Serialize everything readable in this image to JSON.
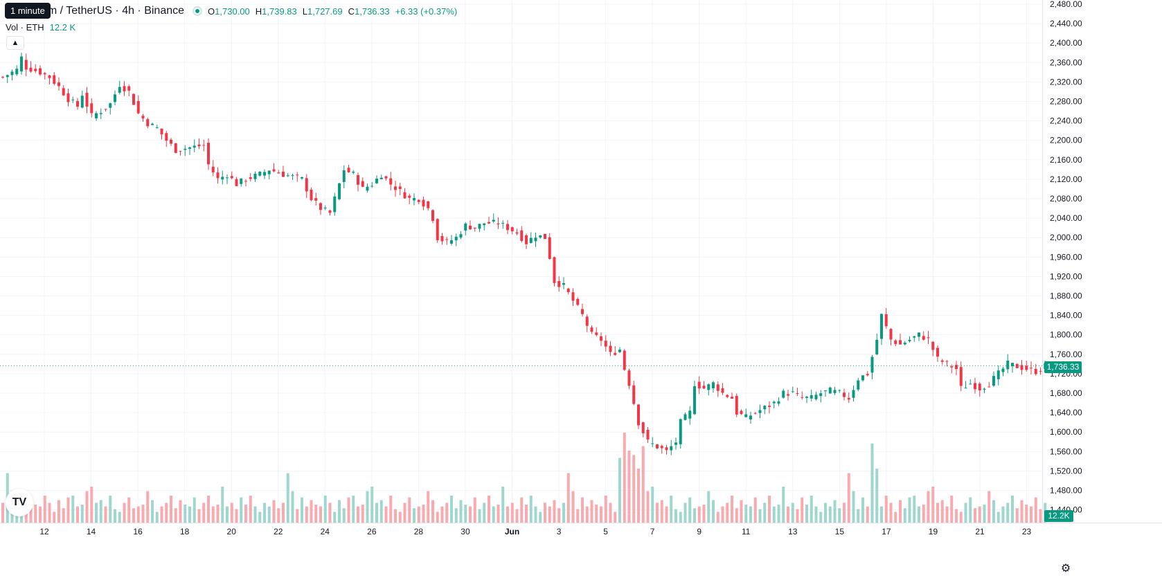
{
  "header": {
    "tooltip": "1 minute",
    "symbol_title": "um / TetherUS · 4h · Binance",
    "ohlc": {
      "o_label": "O",
      "o_value": "1,730.00",
      "h_label": "H",
      "h_value": "1,739.83",
      "l_label": "L",
      "l_value": "1,727.69",
      "c_label": "C",
      "c_value": "1,736.33",
      "change": "+6.33 (+0.37%)"
    }
  },
  "volume_legend": {
    "label": "Vol · ETH",
    "value": "12.2 K"
  },
  "last_price_tag": "1,736.33",
  "volume_tag": "12.2K",
  "colors": {
    "up": "#089981",
    "down": "#f23645",
    "vol_up": "#9fd7cf",
    "vol_down": "#f8aaae",
    "grid": "#f0f3fa"
  },
  "icons": {
    "collapse": "chevron-up-icon",
    "logo": "tradingview-logo-icon",
    "settings": "gear-icon"
  },
  "chart_data": {
    "type": "candlestick",
    "interval": "4h",
    "last_price": 1736.33,
    "y_ticks": [
      "2,480.00",
      "2,440.00",
      "2,400.00",
      "2,360.00",
      "2,320.00",
      "2,280.00",
      "2,240.00",
      "2,200.00",
      "2,160.00",
      "2,120.00",
      "2,080.00",
      "2,040.00",
      "2,000.00",
      "1,960.00",
      "1,920.00",
      "1,880.00",
      "1,840.00",
      "1,800.00",
      "1,760.00",
      "1,720.00",
      "1,680.00",
      "1,640.00",
      "1,600.00",
      "1,560.00",
      "1,520.00",
      "1,480.00",
      "1,440.00"
    ],
    "x_ticks": [
      "12",
      "14",
      "16",
      "18",
      "20",
      "22",
      "24",
      "26",
      "28",
      "30",
      "Jun",
      "3",
      "5",
      "7",
      "9",
      "11",
      "13",
      "15",
      "17",
      "19",
      "21",
      "23"
    ],
    "path_points": [
      [
        0,
        2330
      ],
      [
        3,
        2345
      ],
      [
        4,
        2370
      ],
      [
        5,
        2350
      ],
      [
        8,
        2340
      ],
      [
        10,
        2330
      ],
      [
        12,
        2310
      ],
      [
        14,
        2285
      ],
      [
        16,
        2270
      ],
      [
        17,
        2295
      ],
      [
        19,
        2250
      ],
      [
        21,
        2260
      ],
      [
        23,
        2275
      ],
      [
        25,
        2315
      ],
      [
        27,
        2300
      ],
      [
        29,
        2255
      ],
      [
        31,
        2235
      ],
      [
        33,
        2225
      ],
      [
        35,
        2200
      ],
      [
        37,
        2180
      ],
      [
        40,
        2185
      ],
      [
        43,
        2190
      ],
      [
        44,
        2150
      ],
      [
        46,
        2120
      ],
      [
        48,
        2130
      ],
      [
        50,
        2110
      ],
      [
        52,
        2120
      ],
      [
        55,
        2130
      ],
      [
        57,
        2140
      ],
      [
        60,
        2130
      ],
      [
        62,
        2125
      ],
      [
        64,
        2120
      ],
      [
        66,
        2080
      ],
      [
        68,
        2060
      ],
      [
        70,
        2050
      ],
      [
        71,
        2080
      ],
      [
        73,
        2140
      ],
      [
        75,
        2130
      ],
      [
        77,
        2100
      ],
      [
        79,
        2110
      ],
      [
        81,
        2130
      ],
      [
        83,
        2110
      ],
      [
        85,
        2095
      ],
      [
        87,
        2080
      ],
      [
        89,
        2080
      ],
      [
        91,
        2060
      ],
      [
        92,
        2040
      ],
      [
        93,
        2000
      ],
      [
        95,
        1990
      ],
      [
        97,
        2000
      ],
      [
        99,
        2025
      ],
      [
        101,
        2020
      ],
      [
        103,
        2030
      ],
      [
        106,
        2030
      ],
      [
        108,
        2020
      ],
      [
        110,
        2010
      ],
      [
        112,
        1990
      ],
      [
        114,
        2005
      ],
      [
        116,
        2000
      ],
      [
        117,
        1960
      ],
      [
        118,
        1910
      ],
      [
        120,
        1900
      ],
      [
        122,
        1870
      ],
      [
        124,
        1840
      ],
      [
        126,
        1800
      ],
      [
        128,
        1790
      ],
      [
        130,
        1760
      ],
      [
        132,
        1770
      ],
      [
        133,
        1730
      ],
      [
        134,
        1700
      ],
      [
        135,
        1660
      ],
      [
        136,
        1620
      ],
      [
        138,
        1580
      ],
      [
        140,
        1570
      ],
      [
        142,
        1560
      ],
      [
        144,
        1580
      ],
      [
        145,
        1620
      ],
      [
        147,
        1640
      ],
      [
        148,
        1700
      ],
      [
        150,
        1690
      ],
      [
        152,
        1700
      ],
      [
        154,
        1680
      ],
      [
        156,
        1670
      ],
      [
        157,
        1640
      ],
      [
        159,
        1630
      ],
      [
        161,
        1640
      ],
      [
        163,
        1650
      ],
      [
        165,
        1660
      ],
      [
        167,
        1680
      ],
      [
        169,
        1680
      ],
      [
        171,
        1670
      ],
      [
        173,
        1670
      ],
      [
        175,
        1680
      ],
      [
        177,
        1685
      ],
      [
        179,
        1680
      ],
      [
        181,
        1670
      ],
      [
        183,
        1710
      ],
      [
        185,
        1720
      ],
      [
        187,
        1790
      ],
      [
        188,
        1840
      ],
      [
        190,
        1790
      ],
      [
        192,
        1780
      ],
      [
        194,
        1790
      ],
      [
        196,
        1800
      ],
      [
        198,
        1790
      ],
      [
        200,
        1750
      ],
      [
        202,
        1740
      ],
      [
        204,
        1730
      ],
      [
        205,
        1690
      ],
      [
        207,
        1700
      ],
      [
        209,
        1690
      ],
      [
        211,
        1700
      ],
      [
        213,
        1720
      ],
      [
        215,
        1740
      ],
      [
        217,
        1735
      ],
      [
        219,
        1730
      ],
      [
        221,
        1725
      ],
      [
        223,
        1736
      ]
    ],
    "volume_pattern": [
      22,
      55,
      35,
      15,
      28,
      18,
      25,
      20,
      18,
      30,
      22,
      12,
      25,
      16,
      28,
      30,
      18,
      20,
      35,
      40,
      22,
      25,
      18,
      30,
      15,
      12,
      22,
      28,
      16,
      18,
      20,
      35,
      25,
      12,
      18,
      22,
      30,
      16,
      25,
      20,
      18,
      28,
      15,
      22,
      30,
      18,
      20,
      40,
      18,
      22,
      15,
      28,
      20,
      30,
      18,
      12,
      22,
      18,
      25,
      16
    ],
    "volume_spikes": {
      "132": 72,
      "133": 100,
      "134": 80,
      "135": 75,
      "136": 60,
      "137": 85,
      "186": 88,
      "187": 60
    }
  }
}
